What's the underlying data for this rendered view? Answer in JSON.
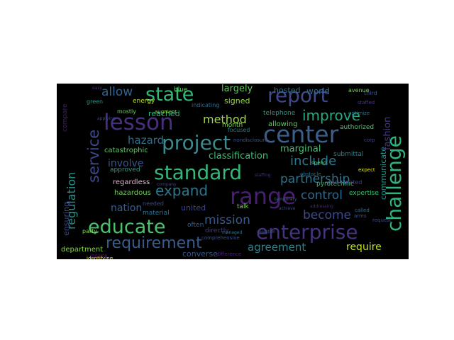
{
  "background": "#000000",
  "page_background": "#ffffff",
  "words": [
    {
      "text": "project",
      "color": "#3b8a8c"
    },
    {
      "text": "standard",
      "color": "#35b779"
    },
    {
      "text": "lesson",
      "color": "#472f7d"
    },
    {
      "text": "state",
      "color": "#35b779"
    },
    {
      "text": "report",
      "color": "#404a8a"
    },
    {
      "text": "center",
      "color": "#3b5f8a"
    },
    {
      "text": "range",
      "color": "#481f70"
    },
    {
      "text": "challenge",
      "color": "#2fb47c"
    },
    {
      "text": "educate",
      "color": "#4ac16d"
    },
    {
      "text": "enterprise",
      "color": "#46327e"
    },
    {
      "text": "requirement",
      "color": "#365c8d"
    },
    {
      "text": "service",
      "color": "#3e4989"
    },
    {
      "text": "regulation",
      "color": "#21918c"
    },
    {
      "text": "expand",
      "color": "#2a788e"
    },
    {
      "text": "partnership",
      "color": "#2c728e"
    },
    {
      "text": "improve",
      "color": "#25ab82"
    },
    {
      "text": "include",
      "color": "#2a788e"
    },
    {
      "text": "control",
      "color": "#31688e"
    },
    {
      "text": "become",
      "color": "#3e4a89"
    },
    {
      "text": "mission",
      "color": "#38598c"
    },
    {
      "text": "agreement",
      "color": "#26828e"
    },
    {
      "text": "method",
      "color": "#9fda3a"
    },
    {
      "text": "hazard",
      "color": "#2e6f8e"
    },
    {
      "text": "involve",
      "color": "#3a548c"
    },
    {
      "text": "allow",
      "color": "#33638d"
    },
    {
      "text": "require",
      "color": "#c2df23"
    },
    {
      "text": "nation",
      "color": "#355f8d"
    },
    {
      "text": "classification",
      "color": "#3dbc74"
    },
    {
      "text": "largely",
      "color": "#5ec962"
    },
    {
      "text": "marginal",
      "color": "#46c06f"
    },
    {
      "text": "signed",
      "color": "#95d840"
    },
    {
      "text": "hosted",
      "color": "#2d708e"
    },
    {
      "text": "world",
      "color": "#31688e"
    },
    {
      "text": "reached",
      "color": "#2fb47c"
    },
    {
      "text": "authorized",
      "color": "#50c46a"
    },
    {
      "text": "catastrophic",
      "color": "#5ac864"
    },
    {
      "text": "approved",
      "color": "#20a386"
    },
    {
      "text": "regardless",
      "color": "#ddb8cf"
    },
    {
      "text": "hazardous",
      "color": "#6ece58"
    },
    {
      "text": "talk",
      "color": "#7ad151"
    },
    {
      "text": "united",
      "color": "#3f4788"
    },
    {
      "text": "material",
      "color": "#2c728e"
    },
    {
      "text": "department",
      "color": "#87d549"
    },
    {
      "text": "converse",
      "color": "#39558c"
    },
    {
      "text": "directly",
      "color": "#443983"
    },
    {
      "text": "month",
      "color": "#7ad151"
    },
    {
      "text": "often",
      "color": "#34618d"
    },
    {
      "text": "energy",
      "color": "#b5de2b"
    },
    {
      "text": "blue",
      "color": "#5ec962"
    },
    {
      "text": "mostly",
      "color": "#6ece58"
    },
    {
      "text": "allowing",
      "color": "#5ec962"
    },
    {
      "text": "telephone",
      "color": "#1f9e89"
    },
    {
      "text": "submittal",
      "color": "#26828e"
    },
    {
      "text": "pyrotechnic",
      "color": "#3dbc74"
    },
    {
      "text": "expertise",
      "color": "#3dbc74"
    },
    {
      "text": "communicate",
      "color": "#1f948c"
    },
    {
      "text": "fashion",
      "color": "#453781"
    },
    {
      "text": "compare",
      "color": "#481d6f"
    },
    {
      "text": "ensuring",
      "color": "#3e4989"
    },
    {
      "text": "indicating",
      "color": "#2f6c8e"
    },
    {
      "text": "focused",
      "color": "#26818e"
    },
    {
      "text": "party",
      "color": "#87d549"
    },
    {
      "text": "needed",
      "color": "#3f4889"
    },
    {
      "text": "participated",
      "color": "#414487"
    },
    {
      "text": "nondisclosure",
      "color": "#3b528b"
    },
    {
      "text": "third",
      "color": "#3b528b"
    },
    {
      "text": "staffed",
      "color": "#453781"
    },
    {
      "text": "augment",
      "color": "#a0da39"
    },
    {
      "text": "expect",
      "color": "#e5e419"
    },
    {
      "text": "initiate",
      "color": "#481467"
    },
    {
      "text": "identifying",
      "color": "#f8e621"
    },
    {
      "text": "difference",
      "color": "#482576"
    },
    {
      "text": "comprehensive",
      "color": "#39568c"
    },
    {
      "text": "managed",
      "color": "#2a788e"
    },
    {
      "text": "arms",
      "color": "#3b528b"
    },
    {
      "text": "achieve",
      "color": "#3e4989"
    },
    {
      "text": "temporary",
      "color": "#31688e"
    },
    {
      "text": "company",
      "color": "#404688"
    },
    {
      "text": "obstacle",
      "color": "#2c728e"
    },
    {
      "text": "corp",
      "color": "#3f4788"
    },
    {
      "text": "avenue",
      "color": "#73d056"
    },
    {
      "text": "optimize",
      "color": "#2a788e"
    },
    {
      "text": "staffing",
      "color": "#46327e"
    },
    {
      "text": "violation",
      "color": "#3b528b"
    },
    {
      "text": "request",
      "color": "#3f4788"
    },
    {
      "text": "called",
      "color": "#2c728e"
    },
    {
      "text": "spend",
      "color": "#52c569"
    },
    {
      "text": "easy",
      "color": "#472d7b"
    },
    {
      "text": "applying",
      "color": "#3e4a89"
    },
    {
      "text": "addressing",
      "color": "#482677"
    },
    {
      "text": "green",
      "color": "#1f9e89"
    }
  ]
}
